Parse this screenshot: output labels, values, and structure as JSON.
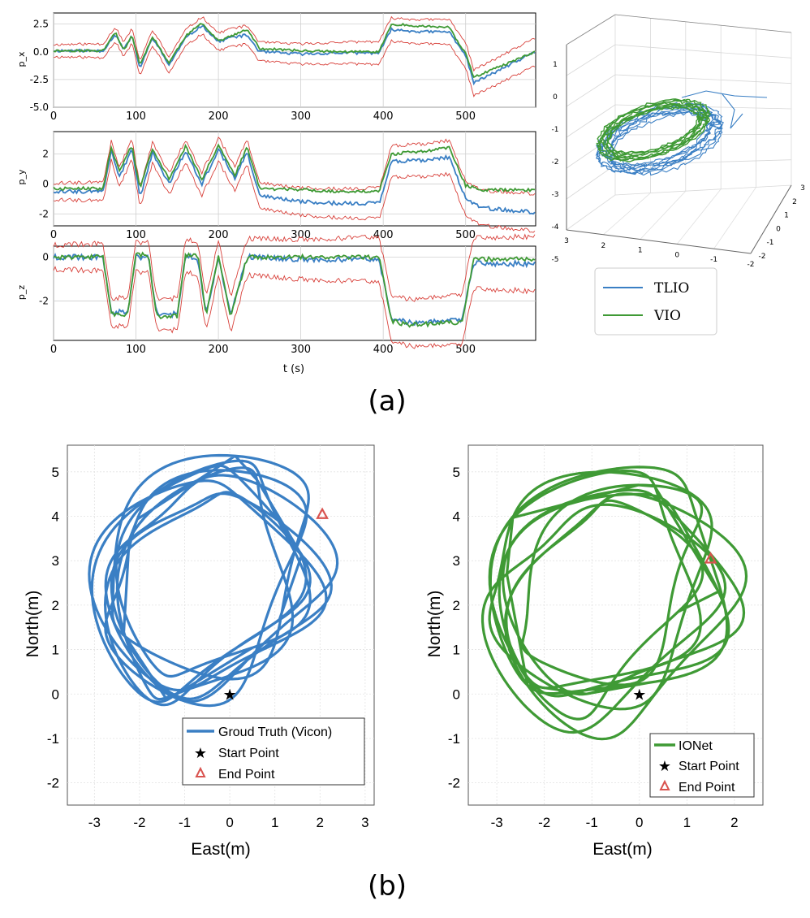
{
  "colors": {
    "tlio": "#3a7fc4",
    "vio": "#3f9a35",
    "sigma": "#d8403a",
    "marker": "#d9534f",
    "grid": "#cfcfcf"
  },
  "panel_a": {
    "caption": "(a)",
    "xlabel": "t (s)",
    "x_ticks": [
      "0",
      "100",
      "200",
      "300",
      "400",
      "500"
    ],
    "legend": [
      "TLIO",
      "VIO"
    ],
    "subplots": [
      {
        "ylabel": "p_x",
        "y_ticks": [
          "2.5",
          "0.0",
          "-2.5",
          "-5.0"
        ]
      },
      {
        "ylabel": "p_y",
        "y_ticks": [
          "2",
          "0",
          "-2"
        ]
      },
      {
        "ylabel": "p_z",
        "y_ticks": [
          "0",
          "-2"
        ]
      }
    ],
    "axes3d": {
      "z_ticks": [
        "1",
        "0",
        "-1",
        "-2",
        "-3",
        "-4",
        "-5"
      ],
      "x_ticks": [
        "3",
        "2",
        "1",
        "0",
        "-1",
        "-2"
      ],
      "y_ticks": [
        "3",
        "2",
        "1",
        "0",
        "-1",
        "-2"
      ]
    }
  },
  "panel_b": {
    "caption": "(b)",
    "xlabel": "East(m)",
    "ylabel": "North(m)",
    "left": {
      "x_ticks": [
        "-3",
        "-2",
        "-1",
        "0",
        "1",
        "2",
        "3"
      ],
      "y_ticks": [
        "5",
        "4",
        "3",
        "2",
        "1",
        "0",
        "-1",
        "-2"
      ],
      "legend": [
        "Groud Truth (Vicon)",
        "Start Point",
        "End Point"
      ]
    },
    "right": {
      "x_ticks": [
        "-3",
        "-2",
        "-1",
        "0",
        "1",
        "2"
      ],
      "y_ticks": [
        "5",
        "4",
        "3",
        "2",
        "1",
        "0",
        "-1",
        "-2"
      ],
      "legend": [
        "IONet",
        "Start Point",
        "End Point"
      ]
    }
  },
  "chart_data": [
    {
      "type": "line",
      "ylabel": "p_x",
      "xlabel": "t (s)",
      "xlim": [
        0,
        585
      ],
      "ylim": [
        -5,
        3.5
      ],
      "x": [
        0,
        60,
        75,
        85,
        95,
        105,
        120,
        140,
        160,
        180,
        200,
        215,
        235,
        250,
        300,
        350,
        395,
        410,
        450,
        480,
        500,
        510,
        585
      ],
      "series": [
        {
          "name": "TLIO",
          "values": [
            0.1,
            0.1,
            1.6,
            0.2,
            1.4,
            -1.5,
            1.3,
            -1.2,
            1.2,
            2.4,
            0.9,
            1.3,
            1.5,
            0.0,
            -0.2,
            -0.1,
            -0.1,
            2.0,
            1.8,
            1.8,
            -0.3,
            -2.8,
            0.0
          ]
        },
        {
          "name": "VIO",
          "values": [
            0.1,
            0.1,
            1.8,
            0.1,
            1.5,
            -1.2,
            1.4,
            -1.0,
            1.4,
            2.6,
            1.0,
            1.4,
            2.0,
            0.3,
            0.1,
            0.0,
            0.0,
            2.5,
            2.3,
            2.2,
            -0.2,
            -2.3,
            0.0
          ]
        }
      ]
    },
    {
      "type": "line",
      "ylabel": "p_y",
      "xlabel": "t (s)",
      "xlim": [
        0,
        585
      ],
      "ylim": [
        -2.8,
        3.5
      ],
      "x": [
        0,
        60,
        70,
        80,
        95,
        105,
        120,
        140,
        160,
        180,
        200,
        220,
        235,
        250,
        300,
        350,
        395,
        410,
        450,
        480,
        500,
        520,
        585
      ],
      "series": [
        {
          "name": "TLIO",
          "values": [
            -0.5,
            -0.5,
            2.2,
            0.5,
            2.3,
            -0.9,
            2.1,
            0.0,
            2.2,
            0.0,
            2.3,
            0.4,
            2.1,
            -0.8,
            -1.2,
            -1.3,
            -1.3,
            1.5,
            1.6,
            1.8,
            -1.0,
            -1.6,
            -1.9
          ]
        },
        {
          "name": "VIO",
          "values": [
            -0.3,
            -0.3,
            2.5,
            0.8,
            2.6,
            -0.3,
            2.4,
            0.3,
            2.5,
            0.3,
            2.6,
            0.6,
            2.5,
            -0.3,
            -0.4,
            -0.5,
            -0.5,
            2.0,
            2.2,
            2.4,
            -0.1,
            -0.4,
            -0.4
          ]
        }
      ]
    },
    {
      "type": "line",
      "ylabel": "p_z",
      "xlabel": "t (s)",
      "xlim": [
        0,
        585
      ],
      "ylim": [
        -3.8,
        0.5
      ],
      "x": [
        0,
        60,
        70,
        90,
        100,
        115,
        125,
        150,
        160,
        175,
        185,
        200,
        215,
        235,
        300,
        395,
        410,
        430,
        480,
        495,
        510,
        585
      ],
      "series": [
        {
          "name": "TLIO",
          "values": [
            0.0,
            0.0,
            -2.5,
            -2.5,
            0.0,
            0.0,
            -2.6,
            -2.6,
            0.0,
            0.0,
            -2.6,
            0.0,
            -2.6,
            0.0,
            -0.1,
            -0.1,
            -2.8,
            -3.0,
            -2.9,
            -2.9,
            -0.3,
            -0.3
          ]
        },
        {
          "name": "VIO",
          "values": [
            0.0,
            0.0,
            -2.6,
            -2.6,
            0.1,
            0.1,
            -2.7,
            -2.7,
            0.1,
            0.1,
            -2.7,
            0.1,
            -2.7,
            0.0,
            0.0,
            0.0,
            -2.9,
            -3.1,
            -3.0,
            -3.0,
            -0.1,
            -0.1
          ]
        }
      ]
    },
    {
      "type": "line",
      "title": "",
      "xlabel": "East(m)",
      "ylabel": "North(m)",
      "xlim": [
        -3.6,
        3.2
      ],
      "ylim": [
        -2.5,
        5.6
      ],
      "series": [
        {
          "name": "Groud Truth (Vicon)",
          "x": [
            0.0,
            -0.8,
            -1.8,
            -2.3,
            -2.3,
            -1.7,
            -0.7,
            0.2,
            1.2,
            1.9,
            2.1,
            1.9,
            1.3,
            0.4,
            -0.5,
            -1.5,
            -2.0,
            -2.0,
            -1.2,
            0.0
          ],
          "y": [
            0.0,
            -0.2,
            0.2,
            1.0,
            2.2,
            3.6,
            4.8,
            5.4,
            5.2,
            4.6,
            3.8,
            2.6,
            1.6,
            0.9,
            0.4,
            0.7,
            1.6,
            3.0,
            4.4,
            5.3
          ]
        }
      ],
      "markers": [
        {
          "name": "Start Point",
          "x": 0.0,
          "y": 0.0
        },
        {
          "name": "End Point",
          "x": 2.05,
          "y": 4.05
        }
      ]
    },
    {
      "type": "line",
      "title": "",
      "xlabel": "East(m)",
      "ylabel": "North(m)",
      "xlim": [
        -3.6,
        2.6
      ],
      "ylim": [
        -2.5,
        5.6
      ],
      "series": [
        {
          "name": "IONet",
          "x": [
            0.0,
            -0.8,
            -1.8,
            -2.8,
            -2.8,
            -2.0,
            -0.9,
            0.2,
            1.1,
            2.1,
            1.9,
            1.5,
            0.5,
            -0.4,
            -1.3,
            -2.5,
            -2.6,
            -1.7,
            -0.5,
            0.0
          ],
          "y": [
            0.0,
            -0.3,
            -0.1,
            0.5,
            1.8,
            3.2,
            4.4,
            4.8,
            4.4,
            1.9,
            1.2,
            2.5,
            2.3,
            0.6,
            0.8,
            0.3,
            1.6,
            3.4,
            4.5,
            4.8
          ]
        }
      ],
      "markers": [
        {
          "name": "Start Point",
          "x": 0.0,
          "y": 0.0
        },
        {
          "name": "End Point",
          "x": 1.5,
          "y": 3.05
        }
      ]
    }
  ]
}
